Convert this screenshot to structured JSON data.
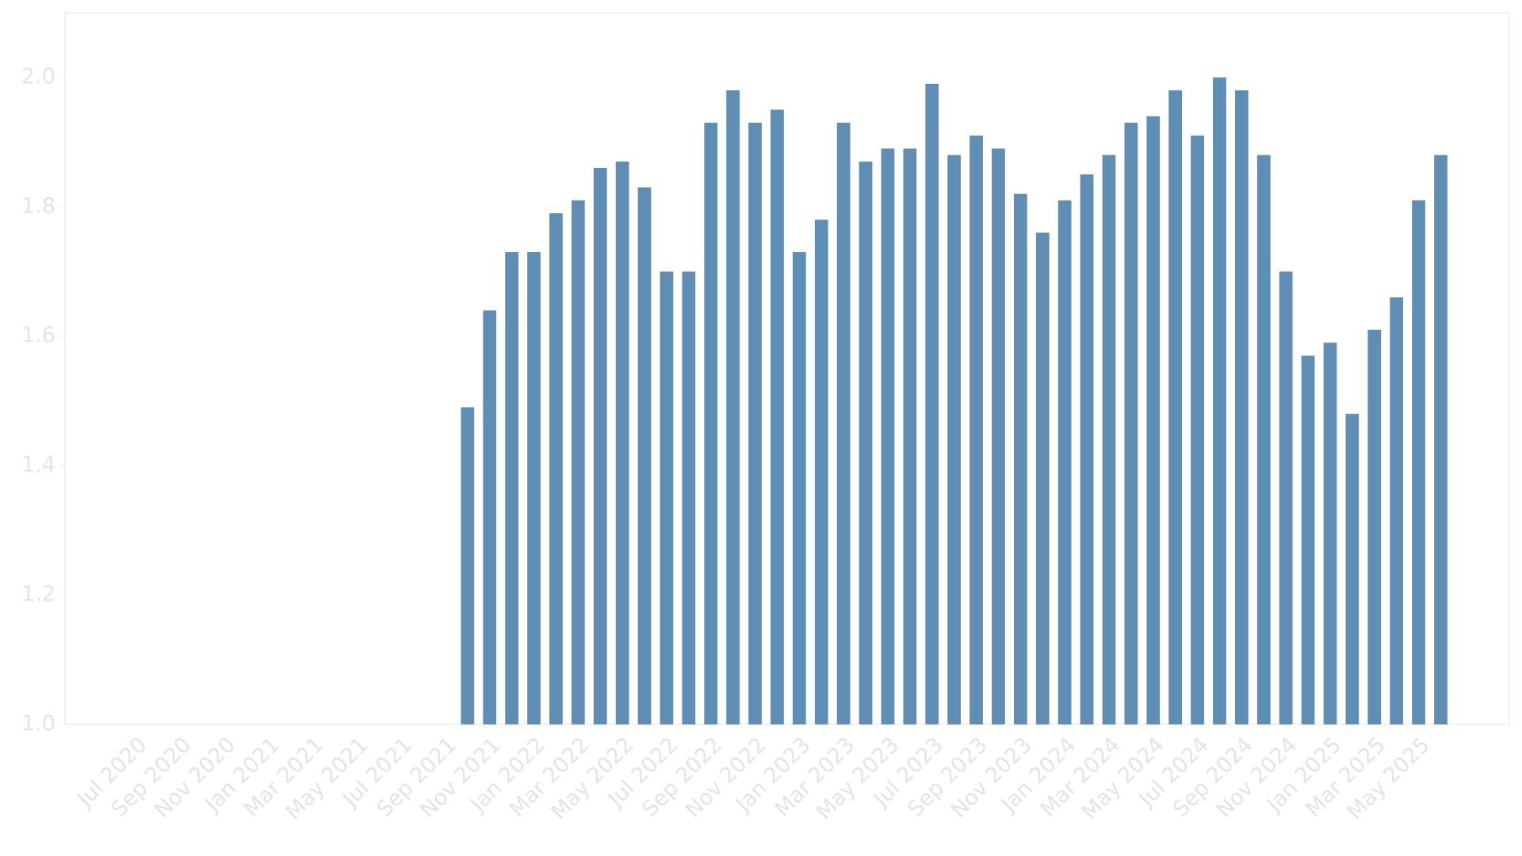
{
  "chart_data": {
    "type": "bar",
    "categories": [
      "Jul 2020",
      null,
      "Sep 2020",
      null,
      "Nov 2020",
      null,
      "Jan 2021",
      null,
      "Mar 2021",
      null,
      "May 2021",
      null,
      "Jul 2021",
      null,
      "Sep 2021",
      null,
      "Nov 2021",
      null,
      "Jan 2022",
      null,
      "Mar 2022",
      null,
      "May 2022",
      null,
      "Jul 2022",
      null,
      "Sep 2022",
      null,
      "Nov 2022",
      null,
      "Jan 2023",
      null,
      "Mar 2023",
      null,
      "May 2023",
      null,
      "Jul 2023",
      null,
      "Sep 2023",
      null,
      "Nov 2023",
      null,
      "Jan 2024",
      null,
      "Mar 2024",
      null,
      "May 2024",
      null,
      "Jul 2024",
      null,
      "Sep 2024",
      null,
      "Nov 2024",
      null,
      "Jan 2025",
      null,
      "Mar 2025",
      null,
      "May 2025",
      null
    ],
    "values": [
      null,
      null,
      null,
      null,
      null,
      null,
      null,
      null,
      null,
      null,
      null,
      null,
      null,
      null,
      null,
      1.49,
      1.64,
      1.73,
      1.73,
      1.79,
      1.81,
      1.86,
      1.87,
      1.83,
      1.7,
      1.7,
      1.93,
      1.98,
      1.93,
      1.95,
      1.73,
      1.78,
      1.93,
      1.87,
      1.89,
      1.89,
      1.99,
      1.88,
      1.91,
      1.89,
      1.82,
      1.76,
      1.81,
      1.85,
      1.88,
      1.93,
      1.94,
      1.98,
      1.91,
      2.0,
      1.98,
      1.88,
      1.7,
      1.57,
      1.59,
      1.48,
      1.61,
      1.66,
      1.81,
      1.88
    ],
    "color": "#5f8db4",
    "ylim": [
      1.0,
      2.1
    ],
    "yticks": [
      {
        "value": 1.0,
        "label": "1.0"
      },
      1.2,
      1.4,
      1.6,
      1.8,
      {
        "value": 2.0,
        "label": "2.0"
      }
    ],
    "grid": false
  }
}
